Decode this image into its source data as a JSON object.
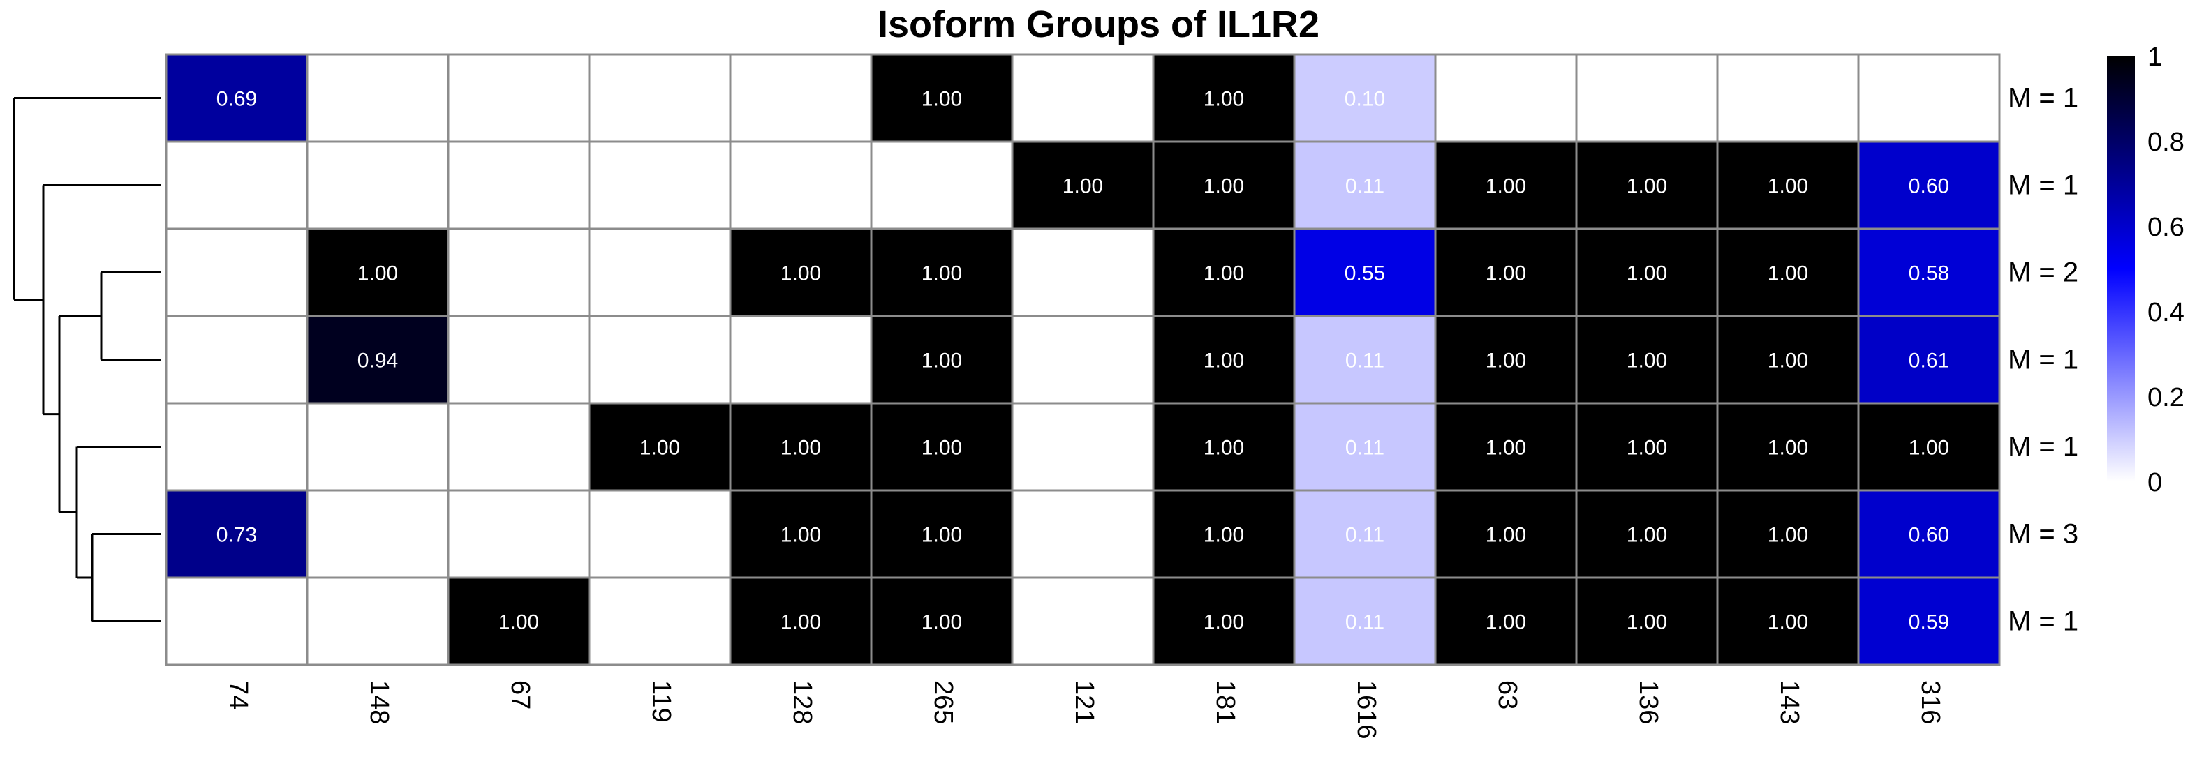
{
  "chart_data": {
    "type": "heatmap",
    "title": "Isoform Groups of IL1R2",
    "columns": [
      "74",
      "148",
      "67",
      "119",
      "128",
      "265",
      "121",
      "181",
      "1616",
      "63",
      "136",
      "143",
      "316"
    ],
    "row_labels": [
      "M = 1",
      "M = 1",
      "M = 2",
      "M = 1",
      "M = 1",
      "M = 3",
      "M = 1"
    ],
    "values": [
      [
        0.69,
        null,
        null,
        null,
        null,
        1.0,
        null,
        1.0,
        0.1,
        null,
        null,
        null,
        null
      ],
      [
        null,
        null,
        null,
        null,
        null,
        null,
        1.0,
        1.0,
        0.11,
        1.0,
        1.0,
        1.0,
        0.6
      ],
      [
        null,
        1.0,
        null,
        null,
        1.0,
        1.0,
        null,
        1.0,
        0.55,
        1.0,
        1.0,
        1.0,
        0.58
      ],
      [
        null,
        0.94,
        null,
        null,
        null,
        1.0,
        null,
        1.0,
        0.11,
        1.0,
        1.0,
        1.0,
        0.61
      ],
      [
        null,
        null,
        null,
        1.0,
        1.0,
        1.0,
        null,
        1.0,
        0.11,
        1.0,
        1.0,
        1.0,
        1.0
      ],
      [
        0.73,
        null,
        null,
        null,
        1.0,
        1.0,
        null,
        1.0,
        0.11,
        1.0,
        1.0,
        1.0,
        0.6
      ],
      [
        null,
        null,
        1.0,
        null,
        1.0,
        1.0,
        null,
        1.0,
        0.11,
        1.0,
        1.0,
        1.0,
        0.59
      ]
    ],
    "value_labels": [
      [
        "0.69",
        "",
        "",
        "",
        "",
        "1.00",
        "",
        "1.00",
        "0.10",
        "",
        "",
        "",
        ""
      ],
      [
        "",
        "",
        "",
        "",
        "",
        "",
        "1.00",
        "1.00",
        "0.11",
        "1.00",
        "1.00",
        "1.00",
        "0.60"
      ],
      [
        "",
        "1.00",
        "",
        "",
        "1.00",
        "1.00",
        "",
        "1.00",
        "0.55",
        "1.00",
        "1.00",
        "1.00",
        "0.58"
      ],
      [
        "",
        "0.94",
        "",
        "",
        "",
        "1.00",
        "",
        "1.00",
        "0.11",
        "1.00",
        "1.00",
        "1.00",
        "0.61"
      ],
      [
        "",
        "",
        "",
        "1.00",
        "1.00",
        "1.00",
        "",
        "1.00",
        "0.11",
        "1.00",
        "1.00",
        "1.00",
        "1.00"
      ],
      [
        "0.73",
        "",
        "",
        "",
        "1.00",
        "1.00",
        "",
        "1.00",
        "0.11",
        "1.00",
        "1.00",
        "1.00",
        "0.60"
      ],
      [
        "",
        "",
        "1.00",
        "",
        "1.00",
        "1.00",
        "",
        "1.00",
        "0.11",
        "1.00",
        "1.00",
        "1.00",
        "0.59"
      ]
    ],
    "color_scale": {
      "low": "#ffffff",
      "mid": "#0000ff",
      "high": "#000000",
      "range": [
        0,
        1
      ],
      "ticks": [
        "0",
        "0.2",
        "0.4",
        "0.6",
        "0.8",
        "1"
      ]
    },
    "cell_border_color": "#8c8c8c",
    "legend": "right",
    "row_dendrogram": true,
    "grid": false
  }
}
